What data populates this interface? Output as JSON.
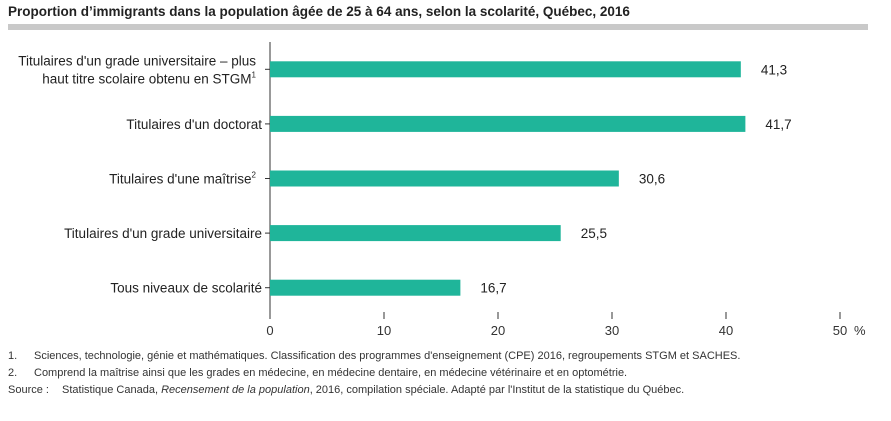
{
  "title": "Proportion d’immigrants dans la population âgée de 25 à 64 ans, selon la scolarité, Québec, 2016",
  "colors": {
    "bar": "#1fb59a",
    "axis": "#333333",
    "title_rule": "#c9c9c9"
  },
  "chart_data": {
    "type": "bar",
    "orientation": "horizontal",
    "categories": [
      "Titulaires d'un grade universitaire – plus haut titre scolaire obtenu en STGM¹",
      "Titulaires d'un doctorat",
      "Titulaires d'une maîtrise²",
      "Titulaires d'un grade universitaire",
      "Tous niveaux de scolarité"
    ],
    "category_lines": [
      [
        "Titulaires d'un grade universitaire – plus",
        "haut titre scolaire obtenu en STGM",
        "1"
      ],
      [
        "Titulaires d'un doctorat",
        "",
        ""
      ],
      [
        "Titulaires d'une maîtrise",
        "",
        "2"
      ],
      [
        "Titulaires d'un grade universitaire",
        "",
        ""
      ],
      [
        "Tous niveaux de scolarité",
        "",
        ""
      ]
    ],
    "values": [
      41.3,
      41.7,
      30.6,
      25.5,
      16.7
    ],
    "value_labels": [
      "41,3",
      "41,7",
      "30,6",
      "25,5",
      "16,7"
    ],
    "xlim": [
      0,
      50
    ],
    "ticks": [
      0,
      10,
      20,
      30,
      40,
      50
    ],
    "tick_labels": [
      "0",
      "10",
      "20",
      "30",
      "40",
      "50"
    ],
    "unit": "%",
    "grid": false
  },
  "notes": [
    {
      "num": "1.",
      "text": "Sciences, technologie, génie et mathématiques. Classification des programmes d'enseignement (CPE) 2016, regroupements STGM et SACHES."
    },
    {
      "num": "2.",
      "text": "Comprend la maîtrise ainsi que les grades en médecine, en médecine dentaire, en médecine vétérinaire et en optométrie."
    }
  ],
  "source": {
    "label": "Source :",
    "before": "Statistique Canada, ",
    "italic": "Recensement de la population",
    "after": ", 2016, compilation spéciale. Adapté par l'Institut de la statistique du Québec."
  }
}
